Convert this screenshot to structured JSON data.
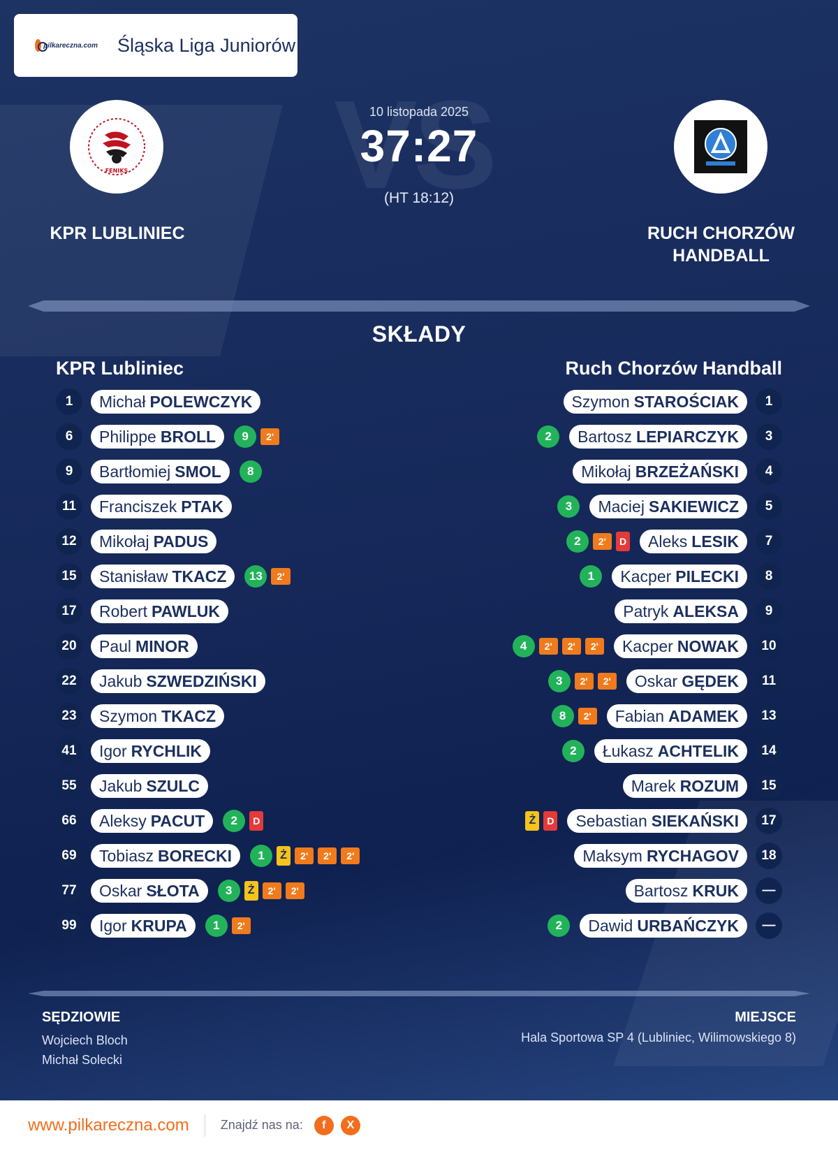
{
  "header": {
    "brand": "pilkareczna.com",
    "league": "Śląska Liga Juniorów"
  },
  "match": {
    "date": "10 listopada 2025",
    "score": "37:27",
    "halftime": "(HT 18:12)",
    "vs_text": "VS"
  },
  "home": {
    "name": "KPR LUBLINIEC",
    "squad_title": "KPR Lubliniec",
    "logo_icon": "feniks-club-crest"
  },
  "away": {
    "name_line1": "RUCH CHORZÓW",
    "name_line2": "HANDBALL",
    "squad_title": "Ruch Chorzów Handball",
    "logo_icon": "ruch-chorzow-crest"
  },
  "section_title": "SKŁADY",
  "home_players": [
    {
      "num": "1",
      "first": "Michał",
      "last": "POLEWCZYK",
      "events": []
    },
    {
      "num": "6",
      "first": "Philippe",
      "last": "BROLL",
      "events": [
        {
          "type": "goal",
          "v": "9"
        },
        {
          "type": "susp",
          "v": "2'"
        }
      ]
    },
    {
      "num": "9",
      "first": "Bartłomiej",
      "last": "SMOL",
      "events": [
        {
          "type": "goal",
          "v": "8"
        }
      ]
    },
    {
      "num": "11",
      "first": "Franciszek",
      "last": "PTAK",
      "events": []
    },
    {
      "num": "12",
      "first": "Mikołaj",
      "last": "PADUS",
      "events": []
    },
    {
      "num": "15",
      "first": "Stanisław",
      "last": "TKACZ",
      "events": [
        {
          "type": "goal",
          "v": "13"
        },
        {
          "type": "susp",
          "v": "2'"
        }
      ]
    },
    {
      "num": "17",
      "first": "Robert",
      "last": "PAWLUK",
      "events": []
    },
    {
      "num": "20",
      "first": "Paul",
      "last": "MINOR",
      "events": []
    },
    {
      "num": "22",
      "first": "Jakub",
      "last": "SZWEDZIŃSKI",
      "events": []
    },
    {
      "num": "23",
      "first": "Szymon",
      "last": "TKACZ",
      "events": []
    },
    {
      "num": "41",
      "first": "Igor",
      "last": "RYCHLIK",
      "events": []
    },
    {
      "num": "55",
      "first": "Jakub",
      "last": "SZULC",
      "events": []
    },
    {
      "num": "66",
      "first": "Aleksy",
      "last": "PACUT",
      "events": [
        {
          "type": "goal",
          "v": "2"
        },
        {
          "type": "red",
          "v": "D"
        }
      ]
    },
    {
      "num": "69",
      "first": "Tobiasz",
      "last": "BORECKI",
      "events": [
        {
          "type": "goal",
          "v": "1"
        },
        {
          "type": "yellow",
          "v": "Ż"
        },
        {
          "type": "susp",
          "v": "2'"
        },
        {
          "type": "susp",
          "v": "2'"
        },
        {
          "type": "susp",
          "v": "2'"
        }
      ]
    },
    {
      "num": "77",
      "first": "Oskar",
      "last": "SŁOTA",
      "events": [
        {
          "type": "goal",
          "v": "3"
        },
        {
          "type": "yellow",
          "v": "Ż"
        },
        {
          "type": "susp",
          "v": "2'"
        },
        {
          "type": "susp",
          "v": "2'"
        }
      ]
    },
    {
      "num": "99",
      "first": "Igor",
      "last": "KRUPA",
      "events": [
        {
          "type": "goal",
          "v": "1"
        },
        {
          "type": "susp",
          "v": "2'"
        }
      ]
    }
  ],
  "away_players": [
    {
      "num": "1",
      "first": "Szymon",
      "last": "STAROŚCIAK",
      "events": []
    },
    {
      "num": "3",
      "first": "Bartosz",
      "last": "LEPIARCZYK",
      "events": [
        {
          "type": "goal",
          "v": "2"
        }
      ]
    },
    {
      "num": "4",
      "first": "Mikołaj",
      "last": "BRZEŻAŃSKI",
      "events": []
    },
    {
      "num": "5",
      "first": "Maciej",
      "last": "SAKIEWICZ",
      "events": [
        {
          "type": "goal",
          "v": "3"
        }
      ]
    },
    {
      "num": "7",
      "first": "Aleks",
      "last": "LESIK",
      "events": [
        {
          "type": "goal",
          "v": "2"
        },
        {
          "type": "susp",
          "v": "2'"
        },
        {
          "type": "red",
          "v": "D"
        }
      ]
    },
    {
      "num": "8",
      "first": "Kacper",
      "last": "PILECKI",
      "events": [
        {
          "type": "goal",
          "v": "1"
        }
      ]
    },
    {
      "num": "9",
      "first": "Patryk",
      "last": "ALEKSA",
      "events": []
    },
    {
      "num": "10",
      "first": "Kacper",
      "last": "NOWAK",
      "events": [
        {
          "type": "goal",
          "v": "4"
        },
        {
          "type": "susp",
          "v": "2'"
        },
        {
          "type": "susp",
          "v": "2'"
        },
        {
          "type": "susp",
          "v": "2'"
        }
      ]
    },
    {
      "num": "11",
      "first": "Oskar",
      "last": "GĘDEK",
      "events": [
        {
          "type": "goal",
          "v": "3"
        },
        {
          "type": "susp",
          "v": "2'"
        },
        {
          "type": "susp",
          "v": "2'"
        }
      ]
    },
    {
      "num": "13",
      "first": "Fabian",
      "last": "ADAMEK",
      "events": [
        {
          "type": "goal",
          "v": "8"
        },
        {
          "type": "susp",
          "v": "2'"
        }
      ]
    },
    {
      "num": "14",
      "first": "Łukasz",
      "last": "ACHTELIK",
      "events": [
        {
          "type": "goal",
          "v": "2"
        }
      ]
    },
    {
      "num": "15",
      "first": "Marek",
      "last": "ROZUM",
      "events": []
    },
    {
      "num": "17",
      "first": "Sebastian",
      "last": "SIEKAŃSKI",
      "events": [
        {
          "type": "yellow",
          "v": "Ż"
        },
        {
          "type": "red",
          "v": "D"
        }
      ]
    },
    {
      "num": "18",
      "first": "Maksym",
      "last": "RYCHAGOV",
      "events": []
    },
    {
      "num": "—",
      "first": "Bartosz",
      "last": "KRUK",
      "events": []
    },
    {
      "num": "—",
      "first": "Dawid",
      "last": "URBAŃCZYK",
      "events": [
        {
          "type": "goal",
          "v": "2"
        }
      ]
    }
  ],
  "referees": {
    "label": "SĘDZIOWIE",
    "names": [
      "Wojciech Bloch",
      "Michał Solecki"
    ]
  },
  "venue": {
    "label": "MIEJSCE",
    "text": "Hala Sportowa SP 4 (Lubliniec, Wilimowskiego 8)"
  },
  "footer": {
    "url": "www.pilkareczna.com",
    "find_us": "Znajdź nas na:",
    "facebook_icon": "f",
    "x_icon": "X"
  }
}
